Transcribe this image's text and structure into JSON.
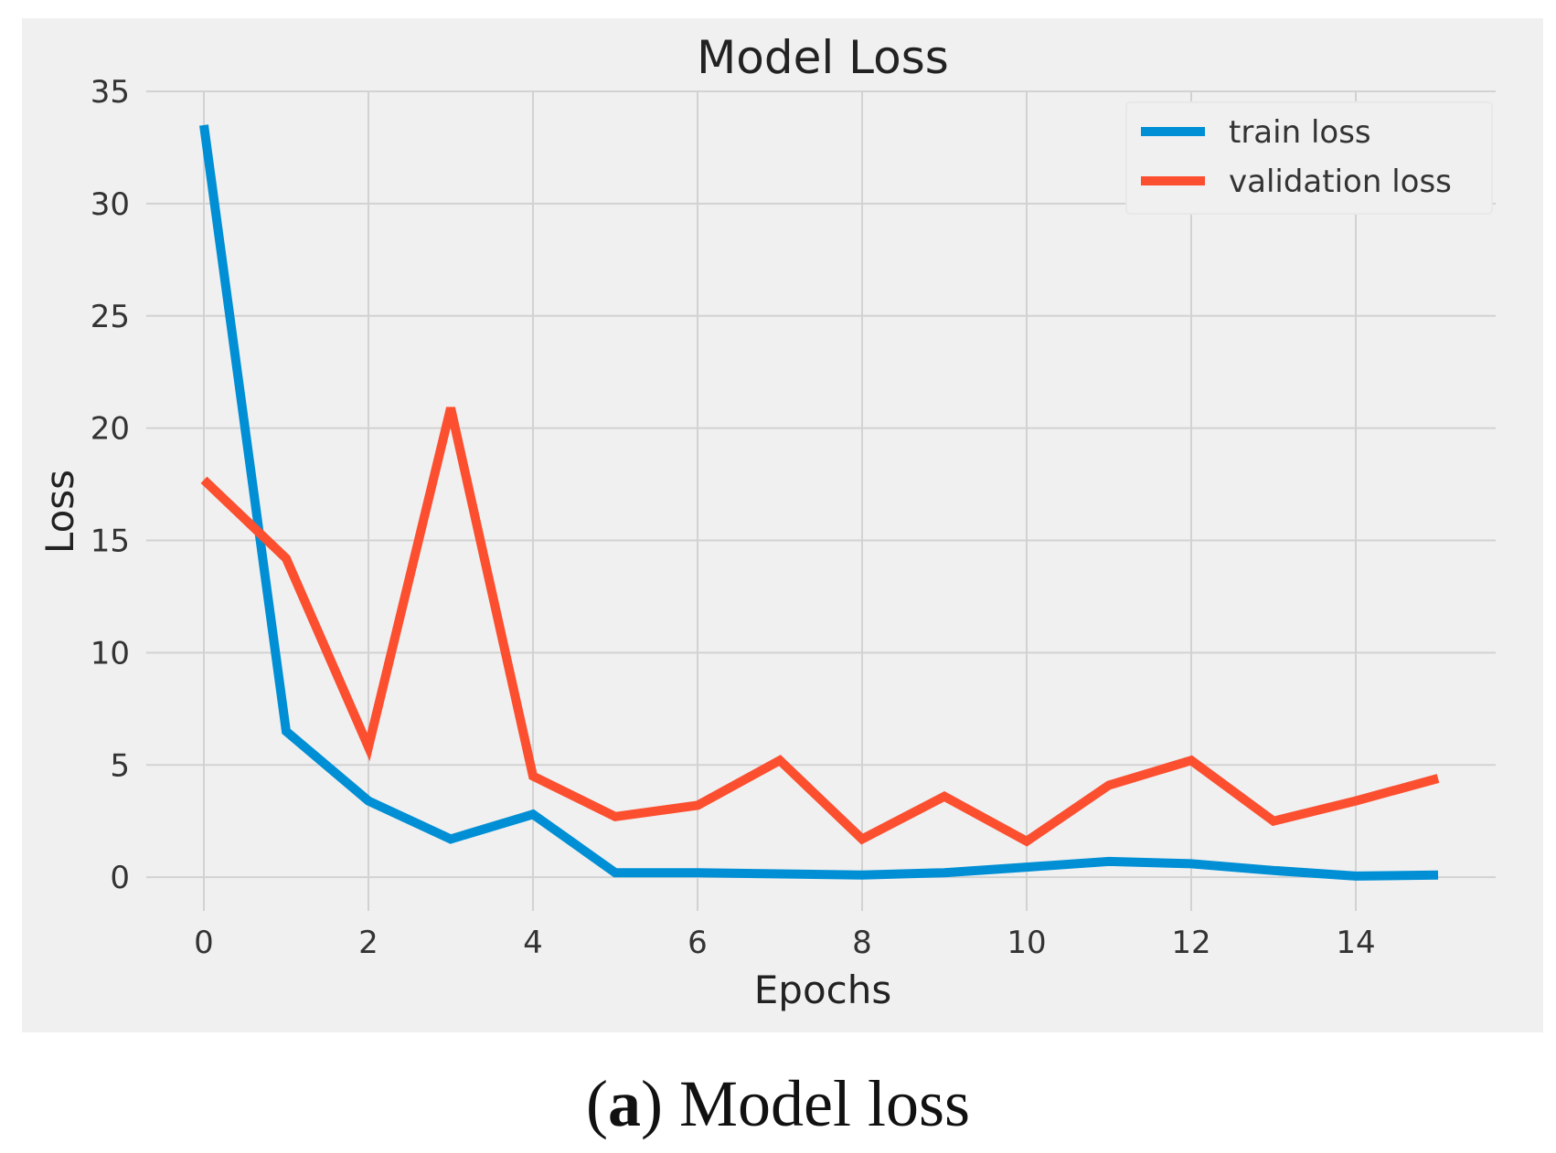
{
  "chart_data": {
    "type": "line",
    "title": "Model Loss",
    "xlabel": "Epochs",
    "ylabel": "Loss",
    "x": [
      0,
      1,
      2,
      3,
      4,
      5,
      6,
      7,
      8,
      9,
      10,
      11,
      12,
      13,
      14,
      15
    ],
    "xlim": [
      -0.7,
      15.7
    ],
    "ylim": [
      -1.5,
      35
    ],
    "xticks": [
      0,
      2,
      4,
      6,
      8,
      10,
      12,
      14
    ],
    "yticks": [
      0,
      5,
      10,
      15,
      20,
      25,
      30,
      35
    ],
    "grid": true,
    "legend_position": "top-right",
    "series": [
      {
        "name": "train loss",
        "color": "#008fd5",
        "values": [
          33.5,
          6.5,
          3.4,
          1.7,
          2.8,
          0.2,
          0.2,
          0.15,
          0.1,
          0.2,
          0.45,
          0.7,
          0.6,
          0.3,
          0.05,
          0.1
        ]
      },
      {
        "name": "validation loss",
        "color": "#fc4f30",
        "values": [
          17.7,
          14.2,
          5.8,
          20.9,
          4.5,
          2.7,
          3.2,
          5.2,
          1.7,
          3.6,
          1.6,
          4.1,
          5.2,
          2.5,
          3.4,
          4.4
        ]
      }
    ]
  },
  "caption": {
    "label": "a",
    "text": " Model loss",
    "open": "(",
    "close": ")"
  },
  "colors": {
    "plot_background": "#f0f0f0",
    "grid": "#d2d2d2",
    "legend_frame": "#e8e8e8"
  }
}
